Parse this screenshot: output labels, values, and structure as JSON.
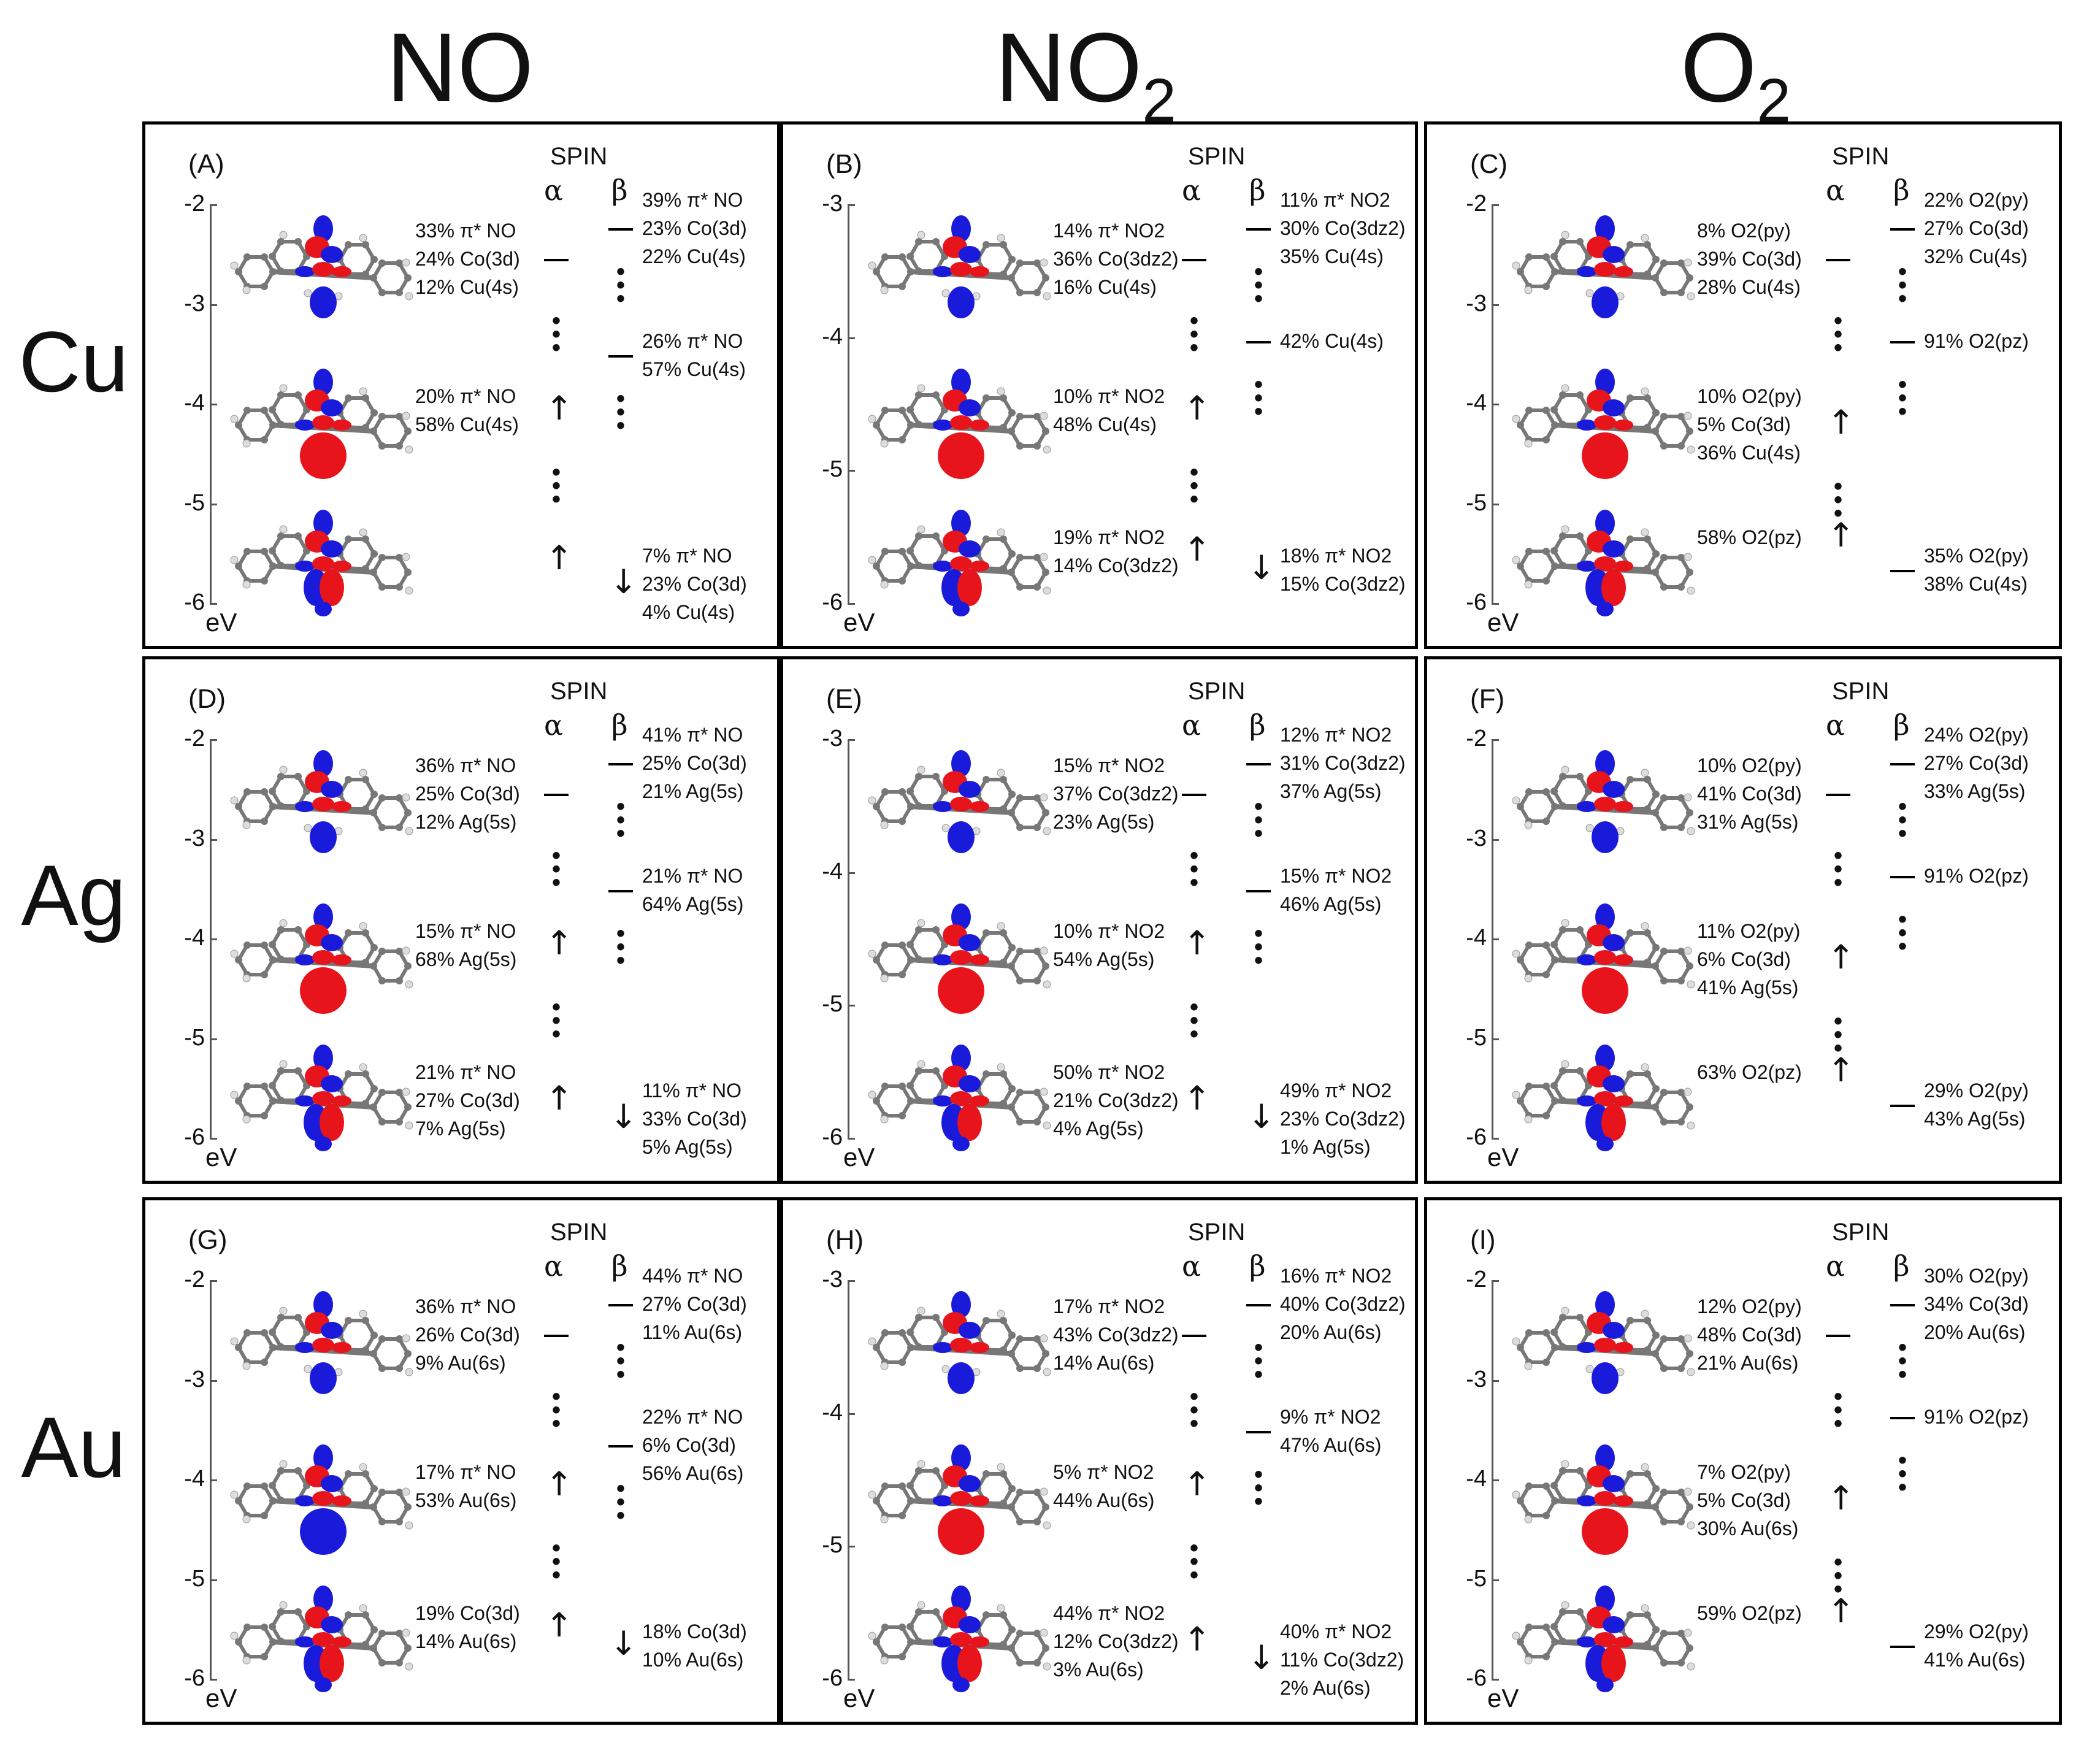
{
  "columns": [
    "NO",
    "NO2",
    "O2"
  ],
  "column_display": {
    "NO": "NO",
    "NO2_base": "NO",
    "NO2_sub": "2",
    "O2_base": "O",
    "O2_sub": "2"
  },
  "rows": [
    "Cu",
    "Ag",
    "Au"
  ],
  "spin_label": "SPIN",
  "alpha": "α",
  "beta": "β",
  "energy_unit": "eV",
  "colors": {
    "lobe_positive": "#e8141c",
    "lobe_negative": "#1a1adb",
    "carbon": "#777777",
    "hydrogen": "#dddddd"
  },
  "panels": [
    {
      "id": "A",
      "label": "(A)",
      "ticks": [
        "-2",
        "-3",
        "-4",
        "-5",
        "-6"
      ],
      "alpha_levels": [
        {
          "lines": [
            "33% π* NO",
            "24% Co(3d)",
            "12% Cu(4s)"
          ],
          "type": "line"
        },
        {
          "lines": [
            "20% π* NO",
            "58% Cu(4s)"
          ],
          "type": "up"
        },
        {
          "lines": [],
          "type": "updown"
        }
      ],
      "beta_levels": [
        {
          "lines": [
            "39% π* NO",
            "23% Co(3d)",
            "22% Cu(4s)"
          ],
          "type": "line"
        },
        {
          "lines": [
            "26% π* NO",
            "57% Cu(4s)"
          ],
          "type": "line"
        },
        {
          "lines": [
            "7% π* NO",
            "23% Co(3d)",
            "4% Cu(4s)"
          ],
          "type": "down"
        }
      ]
    },
    {
      "id": "B",
      "label": "(B)",
      "ticks": [
        "-3",
        "-4",
        "-5",
        "-6"
      ],
      "alpha_levels": [
        {
          "lines": [
            "14% π* NO2",
            "36% Co(3dz2)",
            "16% Cu(4s)"
          ],
          "type": "line"
        },
        {
          "lines": [
            "10% π* NO2",
            "48% Cu(4s)"
          ],
          "type": "up"
        },
        {
          "lines": [
            "19% π* NO2",
            "14% Co(3dz2)"
          ],
          "type": "updown"
        }
      ],
      "beta_levels": [
        {
          "lines": [
            "11% π* NO2",
            "30% Co(3dz2)",
            "35% Cu(4s)"
          ],
          "type": "line"
        },
        {
          "lines": [
            "42% Cu(4s)"
          ],
          "type": "line"
        },
        {
          "lines": [
            "18% π* NO2",
            "15% Co(3dz2)"
          ],
          "type": "down"
        }
      ]
    },
    {
      "id": "C",
      "label": "(C)",
      "ticks": [
        "-2",
        "-3",
        "-4",
        "-5",
        "-6"
      ],
      "alpha_levels": [
        {
          "lines": [
            "8% O2(py)",
            "39% Co(3d)",
            "28% Cu(4s)"
          ],
          "type": "line"
        },
        {
          "lines": [
            "10% O2(py)",
            "5% Co(3d)",
            "36% Cu(4s)"
          ],
          "type": "up"
        },
        {
          "lines": [
            "58% O2(pz)"
          ],
          "type": "up"
        }
      ],
      "beta_levels": [
        {
          "lines": [
            "22% O2(py)",
            "27% Co(3d)",
            "32% Cu(4s)"
          ],
          "type": "line"
        },
        {
          "lines": [
            "91% O2(pz)"
          ],
          "type": "line"
        },
        {
          "lines": [
            "35% O2(py)",
            "38% Cu(4s)"
          ],
          "type": "line"
        }
      ]
    },
    {
      "id": "D",
      "label": "(D)",
      "ticks": [
        "-2",
        "-3",
        "-4",
        "-5",
        "-6"
      ],
      "alpha_levels": [
        {
          "lines": [
            "36% π* NO",
            "25% Co(3d)",
            "12% Ag(5s)"
          ],
          "type": "line"
        },
        {
          "lines": [
            "15% π* NO",
            "68% Ag(5s)"
          ],
          "type": "up"
        },
        {
          "lines": [
            "21% π* NO",
            "27% Co(3d)",
            "7% Ag(5s)"
          ],
          "type": "up"
        }
      ],
      "beta_levels": [
        {
          "lines": [
            "41% π* NO",
            "25% Co(3d)",
            "21% Ag(5s)"
          ],
          "type": "line"
        },
        {
          "lines": [
            "21% π* NO",
            "64% Ag(5s)"
          ],
          "type": "line"
        },
        {
          "lines": [
            "11% π* NO",
            "33% Co(3d)",
            "5% Ag(5s)"
          ],
          "type": "down"
        }
      ]
    },
    {
      "id": "E",
      "label": "(E)",
      "ticks": [
        "-3",
        "-4",
        "-5",
        "-6"
      ],
      "alpha_levels": [
        {
          "lines": [
            "15% π* NO2",
            "37% Co(3dz2)",
            "23% Ag(5s)"
          ],
          "type": "line"
        },
        {
          "lines": [
            "10% π* NO2",
            "54% Ag(5s)"
          ],
          "type": "up"
        },
        {
          "lines": [
            "50% π* NO2",
            "21% Co(3dz2)",
            "4% Ag(5s)"
          ],
          "type": "up"
        }
      ],
      "beta_levels": [
        {
          "lines": [
            "12% π* NO2",
            "31% Co(3dz2)",
            "37% Ag(5s)"
          ],
          "type": "line"
        },
        {
          "lines": [
            "15% π* NO2",
            "46% Ag(5s)"
          ],
          "type": "line"
        },
        {
          "lines": [
            "49% π* NO2",
            "23% Co(3dz2)",
            "1% Ag(5s)"
          ],
          "type": "down"
        }
      ]
    },
    {
      "id": "F",
      "label": "(F)",
      "ticks": [
        "-2",
        "-3",
        "-4",
        "-5",
        "-6"
      ],
      "alpha_levels": [
        {
          "lines": [
            "10% O2(py)",
            "41% Co(3d)",
            "31% Ag(5s)"
          ],
          "type": "line"
        },
        {
          "lines": [
            "11% O2(py)",
            "6% Co(3d)",
            "41% Ag(5s)"
          ],
          "type": "up"
        },
        {
          "lines": [
            "63% O2(pz)"
          ],
          "type": "up"
        }
      ],
      "beta_levels": [
        {
          "lines": [
            "24% O2(py)",
            "27% Co(3d)",
            "33% Ag(5s)"
          ],
          "type": "line"
        },
        {
          "lines": [
            "91% O2(pz)"
          ],
          "type": "line"
        },
        {
          "lines": [
            "29% O2(py)",
            "43% Ag(5s)"
          ],
          "type": "line"
        }
      ]
    },
    {
      "id": "G",
      "label": "(G)",
      "ticks": [
        "-2",
        "-3",
        "-4",
        "-5",
        "-6"
      ],
      "alpha_levels": [
        {
          "lines": [
            "36% π* NO",
            "26% Co(3d)",
            "9% Au(6s)"
          ],
          "type": "line"
        },
        {
          "lines": [
            "17% π* NO",
            "53% Au(6s)"
          ],
          "type": "up"
        },
        {
          "lines": [
            "19% Co(3d)",
            "14% Au(6s)"
          ],
          "type": "up"
        }
      ],
      "beta_levels": [
        {
          "lines": [
            "44% π* NO",
            "27% Co(3d)",
            "11% Au(6s)"
          ],
          "type": "line"
        },
        {
          "lines": [
            "22% π* NO",
            "6% Co(3d)",
            "56% Au(6s)"
          ],
          "type": "line"
        },
        {
          "lines": [
            "18% Co(3d)",
            "10% Au(6s)"
          ],
          "type": "down"
        }
      ]
    },
    {
      "id": "H",
      "label": "(H)",
      "ticks": [
        "-3",
        "-4",
        "-5",
        "-6"
      ],
      "alpha_levels": [
        {
          "lines": [
            "17% π* NO2",
            "43% Co(3dz2)",
            "14% Au(6s)"
          ],
          "type": "line"
        },
        {
          "lines": [
            "5% π* NO2",
            "44% Au(6s)"
          ],
          "type": "up"
        },
        {
          "lines": [
            "44% π* NO2",
            "12% Co(3dz2)",
            "3% Au(6s)"
          ],
          "type": "up"
        }
      ],
      "beta_levels": [
        {
          "lines": [
            "16% π* NO2",
            "40% Co(3dz2)",
            "20% Au(6s)"
          ],
          "type": "line"
        },
        {
          "lines": [
            "9% π* NO2",
            "47% Au(6s)"
          ],
          "type": "line"
        },
        {
          "lines": [
            "40% π* NO2",
            "11% Co(3dz2)",
            "2% Au(6s)"
          ],
          "type": "down"
        }
      ]
    },
    {
      "id": "I",
      "label": "(I)",
      "ticks": [
        "-2",
        "-3",
        "-4",
        "-5",
        "-6"
      ],
      "alpha_levels": [
        {
          "lines": [
            "12% O2(py)",
            "48% Co(3d)",
            "21% Au(6s)"
          ],
          "type": "line"
        },
        {
          "lines": [
            "7% O2(py)",
            "5% Co(3d)",
            "30% Au(6s)"
          ],
          "type": "up"
        },
        {
          "lines": [
            "59% O2(pz)"
          ],
          "type": "up"
        }
      ],
      "beta_levels": [
        {
          "lines": [
            "30% O2(py)",
            "34% Co(3d)",
            "20% Au(6s)"
          ],
          "type": "line"
        },
        {
          "lines": [
            "91% O2(pz)"
          ],
          "type": "line"
        },
        {
          "lines": [
            "29% O2(py)",
            "41% Au(6s)"
          ],
          "type": "line"
        }
      ]
    }
  ]
}
